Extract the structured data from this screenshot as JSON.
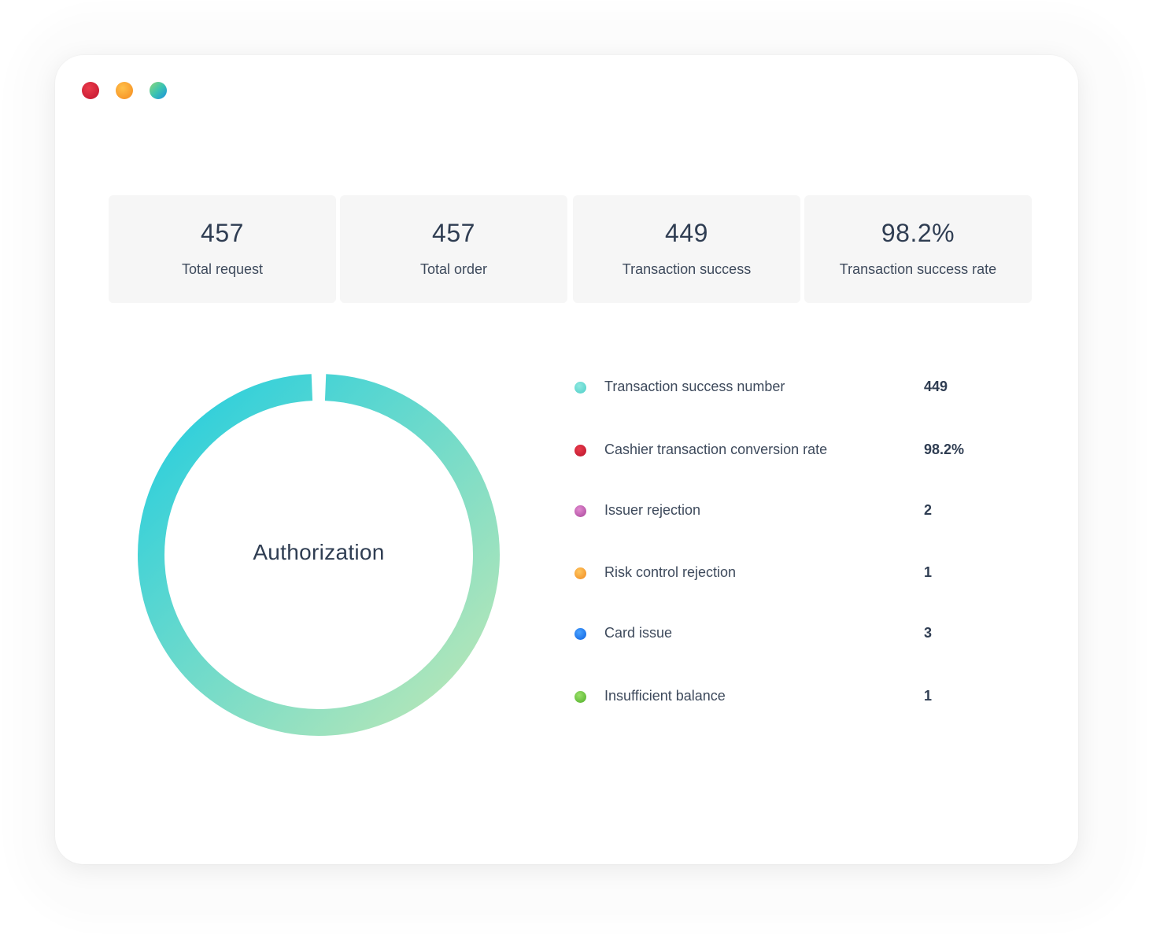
{
  "window": {
    "controls": [
      "close-dot",
      "minimize-dot",
      "maximize-dot"
    ],
    "control_colors": {
      "close": "#d4203a",
      "minimize": "#f8a234",
      "maximize": "#3bc4b0"
    }
  },
  "stats": [
    {
      "value": "457",
      "label": "Total request"
    },
    {
      "value": "457",
      "label": "Total order"
    },
    {
      "value": "449",
      "label": "Transaction success"
    },
    {
      "value": "98.2%",
      "label": "Transaction success rate"
    }
  ],
  "donut": {
    "center_label": "Authorization",
    "gradient_colors": [
      "#2ecfdc",
      "#b4e6b8"
    ]
  },
  "legend": [
    {
      "label": "Transaction success number",
      "value": "449",
      "color": "#5fd8d0"
    },
    {
      "label": "Cashier transaction conversion rate",
      "value": "98.2%",
      "color": "#cc1f36"
    },
    {
      "label": "Issuer rejection",
      "value": "2",
      "color": "#c25bb0"
    },
    {
      "label": "Risk control rejection",
      "value": "1",
      "color": "#f7a03a"
    },
    {
      "label": "Card issue",
      "value": "3",
      "color": "#1673f0"
    },
    {
      "label": "Insufficient balance",
      "value": "1",
      "color": "#6cc23a"
    }
  ]
}
